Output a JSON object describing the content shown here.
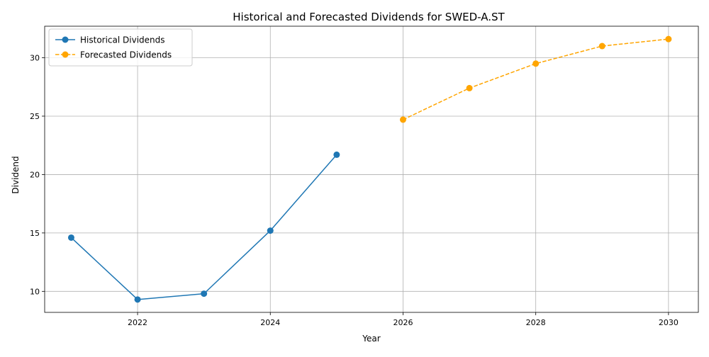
{
  "chart_data": {
    "type": "line",
    "title": "Historical and Forecasted Dividends for SWED-A.ST",
    "xlabel": "Year",
    "ylabel": "Dividend",
    "xlim": [
      2020.6,
      2030.45
    ],
    "ylim": [
      8.2,
      32.7
    ],
    "xticks": [
      2022,
      2024,
      2026,
      2028,
      2030
    ],
    "yticks": [
      10,
      15,
      20,
      25,
      30
    ],
    "grid": true,
    "legend": "top-left",
    "series": [
      {
        "name": "Historical Dividends",
        "color": "#1f77b4",
        "linestyle": "solid",
        "marker": "circle",
        "points": [
          {
            "x": 2021,
            "y": 14.6
          },
          {
            "x": 2022,
            "y": 9.3
          },
          {
            "x": 2023,
            "y": 9.8
          },
          {
            "x": 2024,
            "y": 15.2
          },
          {
            "x": 2025,
            "y": 21.7
          }
        ]
      },
      {
        "name": "Forecasted Dividends",
        "color": "#ffa500",
        "linestyle": "dashed",
        "marker": "circle",
        "points": [
          {
            "x": 2026,
            "y": 24.7
          },
          {
            "x": 2027,
            "y": 27.4
          },
          {
            "x": 2028,
            "y": 29.5
          },
          {
            "x": 2029,
            "y": 31.0
          },
          {
            "x": 2030,
            "y": 31.6
          }
        ]
      }
    ]
  }
}
